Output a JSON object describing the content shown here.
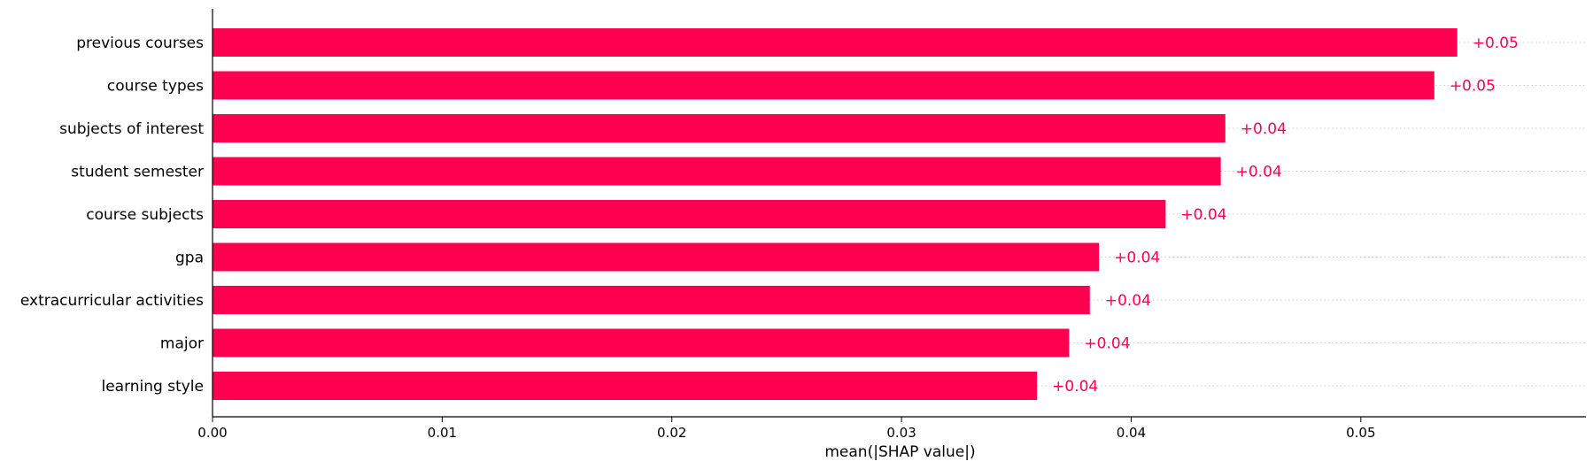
{
  "chart_data": {
    "type": "bar",
    "orientation": "horizontal",
    "categories": [
      "previous courses",
      "course types",
      "subjects of interest",
      "student semester",
      "course subjects",
      "gpa",
      "extracurricular activities",
      "major",
      "learning style"
    ],
    "values": [
      0.0542,
      0.0532,
      0.0441,
      0.0439,
      0.0415,
      0.0386,
      0.0382,
      0.0373,
      0.0359
    ],
    "value_labels": [
      "+0.05",
      "+0.05",
      "+0.04",
      "+0.04",
      "+0.04",
      "+0.04",
      "+0.04",
      "+0.04",
      "+0.04"
    ],
    "xlabel": "mean(|SHAP value|)",
    "ylabel": "",
    "title": "",
    "xlim": [
      0,
      0.0598
    ],
    "xticks": [
      0.0,
      0.01,
      0.02,
      0.03,
      0.04,
      0.05
    ],
    "xtick_labels": [
      "0.00",
      "0.01",
      "0.02",
      "0.03",
      "0.04",
      "0.05"
    ],
    "grid": false,
    "guide_lines": "dotted",
    "bar_color": "#ff0051",
    "label_color": "#ff0051"
  }
}
